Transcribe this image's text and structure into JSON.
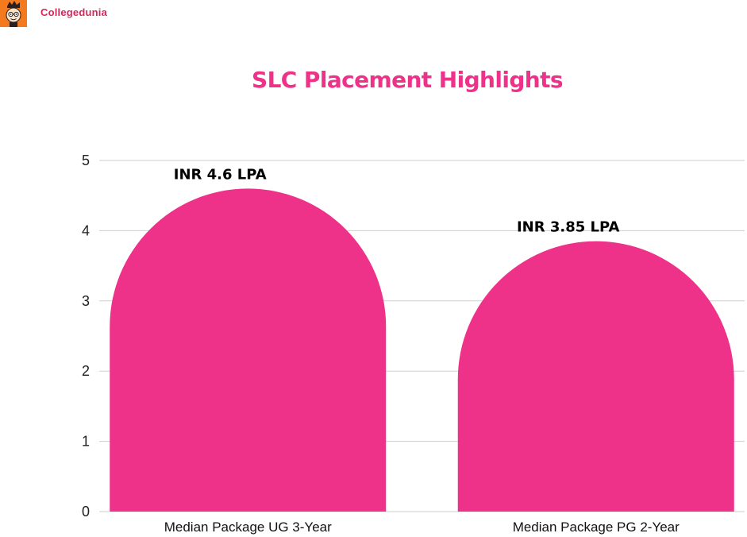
{
  "brand": {
    "name": "Collegedunia",
    "logo_icon": "cartoon-face-icon",
    "logo_bg_color": "#f47a20",
    "text_color": "#d6275b"
  },
  "chart_data": {
    "type": "bar",
    "title": "SLC Placement Highlights",
    "xlabel": "",
    "ylabel": "",
    "categories": [
      "Median Package UG 3-Year",
      "Median Package PG 2-Year"
    ],
    "values": [
      4.6,
      3.85
    ],
    "data_labels": [
      "INR 4.6 LPA",
      "INR 3.85 LPA"
    ],
    "ylim": [
      0,
      5
    ],
    "yticks": [
      "0",
      "1",
      "2",
      "3",
      "4",
      "5"
    ],
    "grid": true,
    "legend": "none",
    "bar_style": "rounded-top",
    "bar_color": "#ee3189",
    "title_color": "#ee3189"
  }
}
